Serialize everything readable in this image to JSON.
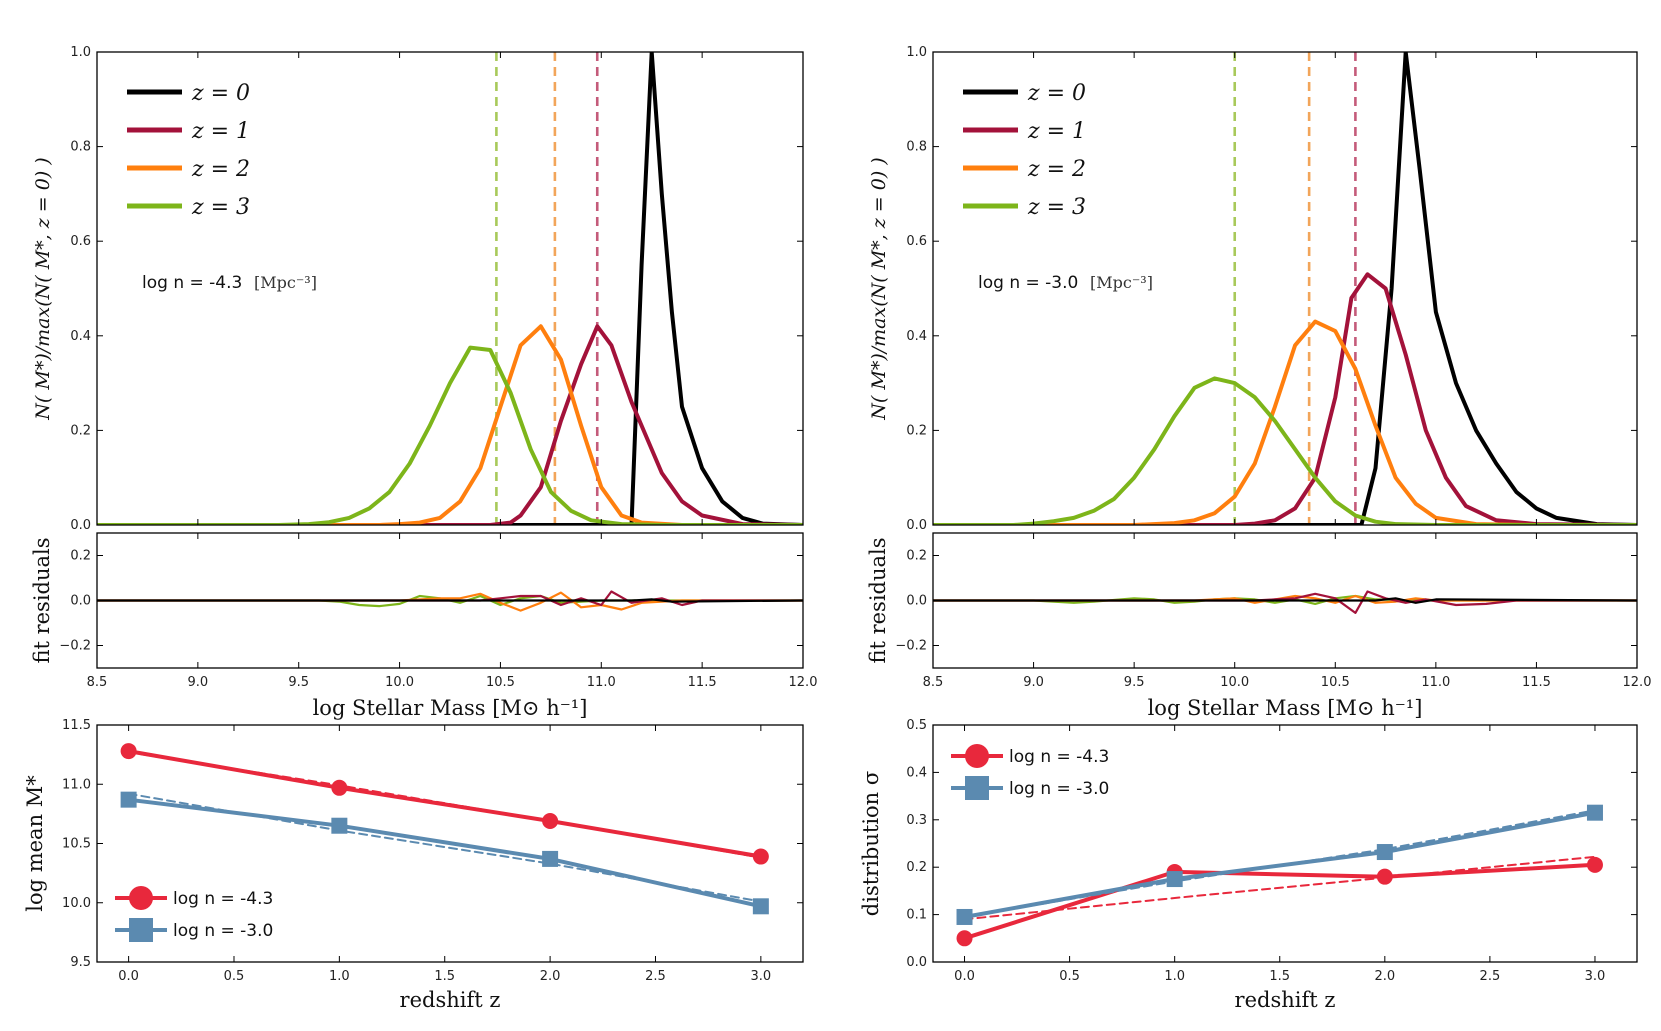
{
  "chart_data": [
    {
      "id": "A",
      "type": "line",
      "ylabel": "N( M*)/max(N( M*, z = 0) )",
      "ylim": [
        0,
        1.0
      ],
      "xlim": [
        8.5,
        12.0
      ],
      "yticks": [
        "0.0",
        "0.2",
        "0.4",
        "0.6",
        "0.8",
        "1.0"
      ],
      "annotation": "log n = -4.3",
      "annotation_unit": "[Mpc⁻³]",
      "legend": [
        "z = 0",
        "z = 1",
        "z = 2",
        "z = 3"
      ],
      "vlines": [
        {
          "x": 10.48,
          "color": "#a8c95a"
        },
        {
          "x": 10.77,
          "color": "#f2a55a"
        },
        {
          "x": 10.98,
          "color": "#c45b7a"
        }
      ],
      "series": [
        {
          "name": "z = 0",
          "color": "#000000",
          "x": [
            8.5,
            11.15,
            11.2,
            11.25,
            11.3,
            11.35,
            11.4,
            11.5,
            11.6,
            11.7,
            11.8,
            12.0
          ],
          "y": [
            0,
            0,
            0.55,
            1.0,
            0.7,
            0.45,
            0.25,
            0.12,
            0.05,
            0.015,
            0.003,
            0
          ]
        },
        {
          "name": "z = 1",
          "color": "#a3123a",
          "x": [
            8.5,
            10.45,
            10.55,
            10.6,
            10.7,
            10.8,
            10.9,
            10.98,
            11.05,
            11.15,
            11.3,
            11.4,
            11.5,
            11.7,
            12.0
          ],
          "y": [
            0,
            0,
            0.005,
            0.02,
            0.08,
            0.22,
            0.34,
            0.42,
            0.38,
            0.26,
            0.11,
            0.05,
            0.02,
            0.002,
            0
          ]
        },
        {
          "name": "z = 2",
          "color": "#ff7f0e",
          "x": [
            8.5,
            9.9,
            10.0,
            10.1,
            10.2,
            10.3,
            10.4,
            10.5,
            10.6,
            10.7,
            10.8,
            10.9,
            11.0,
            11.1,
            11.2,
            11.4,
            12.0
          ],
          "y": [
            0,
            0,
            0.002,
            0.005,
            0.015,
            0.05,
            0.12,
            0.25,
            0.38,
            0.42,
            0.35,
            0.21,
            0.08,
            0.02,
            0.005,
            0,
            0
          ]
        },
        {
          "name": "z = 3",
          "color": "#7db51a",
          "x": [
            8.5,
            9.4,
            9.55,
            9.65,
            9.75,
            9.85,
            9.95,
            10.05,
            10.15,
            10.25,
            10.35,
            10.45,
            10.55,
            10.65,
            10.75,
            10.85,
            10.95,
            11.1,
            11.3,
            12.0
          ],
          "y": [
            0,
            0,
            0.002,
            0.006,
            0.015,
            0.035,
            0.07,
            0.13,
            0.21,
            0.3,
            0.375,
            0.37,
            0.28,
            0.16,
            0.07,
            0.03,
            0.01,
            0.002,
            0,
            0
          ]
        }
      ]
    },
    {
      "id": "B",
      "type": "line",
      "ylabel": "N( M*)/max(N( M*, z = 0) )",
      "ylim": [
        0,
        1.0
      ],
      "xlim": [
        8.5,
        12.0
      ],
      "yticks": [
        "0.0",
        "0.2",
        "0.4",
        "0.6",
        "0.8",
        "1.0"
      ],
      "annotation": "log n = -3.0",
      "annotation_unit": "[Mpc⁻³]",
      "legend": [
        "z = 0",
        "z = 1",
        "z = 2",
        "z = 3"
      ],
      "vlines": [
        {
          "x": 10.0,
          "color": "#a8c95a"
        },
        {
          "x": 10.37,
          "color": "#f2a55a"
        },
        {
          "x": 10.6,
          "color": "#c45b7a"
        }
      ],
      "series": [
        {
          "name": "z = 0",
          "color": "#000000",
          "x": [
            8.5,
            10.63,
            10.7,
            10.78,
            10.85,
            10.92,
            11.0,
            11.1,
            11.2,
            11.3,
            11.4,
            11.5,
            11.6,
            11.8,
            12.0
          ],
          "y": [
            0,
            0,
            0.12,
            0.5,
            1.0,
            0.75,
            0.45,
            0.3,
            0.2,
            0.13,
            0.07,
            0.035,
            0.015,
            0.002,
            0
          ]
        },
        {
          "name": "z = 1",
          "color": "#a3123a",
          "x": [
            8.5,
            10.0,
            10.1,
            10.2,
            10.3,
            10.4,
            10.5,
            10.58,
            10.66,
            10.75,
            10.85,
            10.95,
            11.05,
            11.15,
            11.3,
            11.5,
            12.0
          ],
          "y": [
            0,
            0,
            0.003,
            0.01,
            0.035,
            0.1,
            0.27,
            0.48,
            0.53,
            0.5,
            0.36,
            0.2,
            0.1,
            0.04,
            0.01,
            0.002,
            0
          ]
        },
        {
          "name": "z = 2",
          "color": "#ff7f0e",
          "x": [
            8.5,
            9.5,
            9.7,
            9.8,
            9.9,
            10.0,
            10.1,
            10.2,
            10.3,
            10.4,
            10.5,
            10.6,
            10.7,
            10.8,
            10.9,
            11.0,
            11.2,
            11.5,
            12.0
          ],
          "y": [
            0,
            0,
            0.004,
            0.01,
            0.025,
            0.06,
            0.13,
            0.25,
            0.38,
            0.43,
            0.41,
            0.33,
            0.21,
            0.1,
            0.045,
            0.015,
            0.002,
            0,
            0
          ]
        },
        {
          "name": "z = 3",
          "color": "#7db51a",
          "x": [
            8.5,
            8.9,
            9.0,
            9.1,
            9.2,
            9.3,
            9.4,
            9.5,
            9.6,
            9.7,
            9.8,
            9.9,
            10.0,
            10.1,
            10.2,
            10.3,
            10.4,
            10.5,
            10.6,
            10.7,
            10.8,
            11.0,
            11.3,
            12.0
          ],
          "y": [
            0,
            0,
            0.003,
            0.008,
            0.015,
            0.03,
            0.055,
            0.1,
            0.16,
            0.23,
            0.29,
            0.31,
            0.3,
            0.27,
            0.22,
            0.16,
            0.1,
            0.05,
            0.02,
            0.007,
            0.002,
            0,
            0,
            0
          ]
        }
      ]
    },
    {
      "id": "A_res",
      "type": "line",
      "ylabel": "fit residuals",
      "xlabel": "log Stellar Mass [M⊙ h⁻¹]",
      "ylim": [
        -0.3,
        0.3
      ],
      "xlim": [
        8.5,
        12.0
      ],
      "yticks": [
        "−0.2",
        "0.0",
        "0.2"
      ],
      "xticks": [
        "8.5",
        "9.0",
        "9.5",
        "10.0",
        "10.5",
        "11.0",
        "11.5",
        "12.0"
      ],
      "series": [
        {
          "name": "z = 0",
          "color": "#000000",
          "x": [
            8.5,
            11.15,
            11.25,
            11.35,
            12.0
          ],
          "y": [
            0,
            0,
            0.005,
            -0.005,
            0
          ]
        },
        {
          "name": "z = 1",
          "color": "#a3123a",
          "x": [
            8.5,
            10.4,
            10.5,
            10.6,
            10.7,
            10.8,
            10.9,
            11.0,
            11.05,
            11.15,
            11.3,
            11.4,
            11.5,
            12.0
          ],
          "y": [
            0,
            0,
            0.01,
            0.02,
            0.02,
            -0.02,
            0.01,
            -0.02,
            0.04,
            -0.01,
            0.01,
            -0.02,
            0,
            0
          ]
        },
        {
          "name": "z = 2",
          "color": "#ff7f0e",
          "x": [
            8.5,
            10.0,
            10.2,
            10.3,
            10.4,
            10.5,
            10.6,
            10.7,
            10.8,
            10.9,
            11.0,
            11.1,
            11.2,
            11.4,
            12.0
          ],
          "y": [
            0,
            0,
            0.01,
            0.01,
            0.03,
            -0.01,
            -0.045,
            -0.01,
            0.035,
            -0.03,
            -0.02,
            -0.04,
            -0.01,
            0,
            0
          ]
        },
        {
          "name": "z = 3",
          "color": "#7db51a",
          "x": [
            8.5,
            9.6,
            9.7,
            9.8,
            9.9,
            10.0,
            10.1,
            10.2,
            10.3,
            10.4,
            10.5,
            10.6,
            10.7,
            10.8,
            11.0,
            12.0
          ],
          "y": [
            0,
            0,
            -0.005,
            -0.02,
            -0.025,
            -0.015,
            0.02,
            0.01,
            -0.01,
            0.02,
            -0.02,
            0.01,
            0.02,
            -0.01,
            0,
            0
          ]
        }
      ]
    },
    {
      "id": "B_res",
      "type": "line",
      "ylabel": "fit residuals",
      "xlabel": "log Stellar Mass [M⊙ h⁻¹]",
      "ylim": [
        -0.3,
        0.3
      ],
      "xlim": [
        8.5,
        12.0
      ],
      "yticks": [
        "−0.2",
        "0.0",
        "0.2"
      ],
      "xticks": [
        "8.5",
        "9.0",
        "9.5",
        "10.0",
        "10.5",
        "11.0",
        "11.5",
        "12.0"
      ],
      "series": [
        {
          "name": "z = 0",
          "color": "#000000",
          "x": [
            8.5,
            10.7,
            10.8,
            10.9,
            11.0,
            12.0
          ],
          "y": [
            0,
            0,
            0.01,
            -0.01,
            0.005,
            0
          ]
        },
        {
          "name": "z = 1",
          "color": "#a3123a",
          "x": [
            8.5,
            10.1,
            10.2,
            10.3,
            10.4,
            10.5,
            10.6,
            10.66,
            10.75,
            10.85,
            10.95,
            11.1,
            11.25,
            11.4,
            12.0
          ],
          "y": [
            0,
            0,
            0.005,
            0.01,
            0.03,
            0.01,
            -0.055,
            0.04,
            0.01,
            -0.01,
            0.005,
            -0.02,
            -0.015,
            0,
            0
          ]
        },
        {
          "name": "z = 2",
          "color": "#ff7f0e",
          "x": [
            8.5,
            9.8,
            9.9,
            10.0,
            10.1,
            10.2,
            10.3,
            10.4,
            10.5,
            10.6,
            10.7,
            10.8,
            10.9,
            11.0,
            12.0
          ],
          "y": [
            0,
            0,
            0.005,
            0.01,
            -0.01,
            0.005,
            0.02,
            0.01,
            -0.01,
            0.02,
            -0.01,
            -0.005,
            0.01,
            0,
            0
          ]
        },
        {
          "name": "z = 3",
          "color": "#7db51a",
          "x": [
            8.5,
            9.0,
            9.2,
            9.3,
            9.5,
            9.6,
            9.7,
            9.8,
            9.9,
            10.0,
            10.1,
            10.2,
            10.3,
            10.4,
            10.5,
            10.6,
            10.7,
            10.9,
            11.0,
            12.0
          ],
          "y": [
            0,
            0,
            -0.01,
            -0.005,
            0.01,
            0.005,
            -0.01,
            -0.005,
            0.005,
            0.01,
            0.005,
            -0.01,
            0.005,
            -0.015,
            0.01,
            0.02,
            0.005,
            0,
            0,
            0
          ]
        }
      ]
    },
    {
      "id": "C",
      "type": "line",
      "xlabel": "redshift z",
      "ylabel": "log mean M*",
      "xlim": [
        -0.15,
        3.2
      ],
      "ylim": [
        9.5,
        11.5
      ],
      "xticks": [
        "0.0",
        "0.5",
        "1.0",
        "1.5",
        "2.0",
        "2.5",
        "3.0"
      ],
      "yticks": [
        "9.5",
        "10.0",
        "10.5",
        "11.0",
        "11.5"
      ],
      "legend": [
        "log n = -4.3",
        "log n = -3.0"
      ],
      "series": [
        {
          "name": "log n = -4.3",
          "color": "#e8283c",
          "marker": "circle",
          "x": [
            0,
            1,
            2,
            3
          ],
          "y": [
            11.28,
            10.97,
            10.69,
            10.39
          ],
          "fit": [
            11.27,
            10.99,
            10.69,
            10.38
          ]
        },
        {
          "name": "log n = -3.0",
          "color": "#5b8ab0",
          "marker": "square",
          "x": [
            0,
            1,
            2,
            3
          ],
          "y": [
            10.87,
            10.65,
            10.37,
            9.97
          ],
          "fit": [
            10.92,
            10.61,
            10.33,
            10.01
          ]
        }
      ]
    },
    {
      "id": "D",
      "type": "line",
      "xlabel": "redshift z",
      "ylabel": "distribution σ",
      "xlim": [
        -0.15,
        3.2
      ],
      "ylim": [
        0,
        0.5
      ],
      "xticks": [
        "0.0",
        "0.5",
        "1.0",
        "1.5",
        "2.0",
        "2.5",
        "3.0"
      ],
      "yticks": [
        "0.0",
        "0.1",
        "0.2",
        "0.3",
        "0.4",
        "0.5"
      ],
      "legend": [
        "log n = -4.3",
        "log n = -3.0"
      ],
      "series": [
        {
          "name": "log n = -4.3",
          "color": "#e8283c",
          "marker": "circle",
          "x": [
            0,
            1,
            2,
            3
          ],
          "y": [
            0.05,
            0.19,
            0.18,
            0.205
          ],
          "fit": [
            0.09,
            0.135,
            0.178,
            0.222
          ]
        },
        {
          "name": "log n = -3.0",
          "color": "#5b8ab0",
          "marker": "square",
          "x": [
            0,
            1,
            2,
            3
          ],
          "y": [
            0.095,
            0.175,
            0.232,
            0.315
          ],
          "fit": [
            0.095,
            0.17,
            0.238,
            0.32
          ]
        }
      ]
    }
  ]
}
